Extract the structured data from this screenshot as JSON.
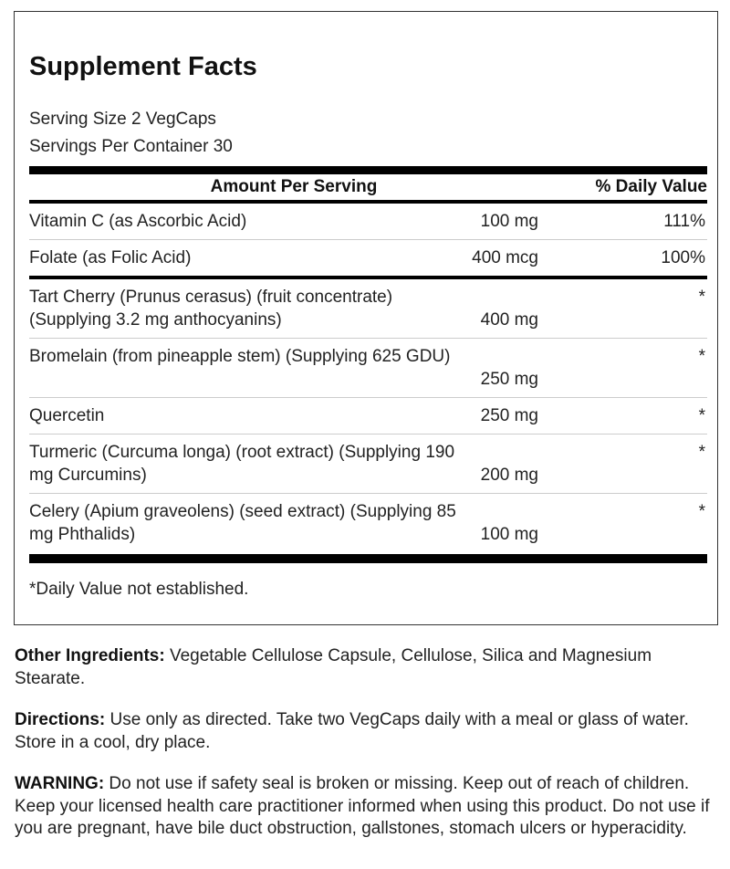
{
  "title": "Supplement Facts",
  "serving_size": "Serving Size 2 VegCaps",
  "servings_per_container": "Servings Per Container 30",
  "header": {
    "amount": "Amount Per Serving",
    "dv": "% Daily Value"
  },
  "rows": [
    {
      "lines": [
        "Vitamin C (as Ascorbic Acid)"
      ],
      "amount": "100 mg",
      "dv": "111%"
    },
    {
      "lines": [
        "Folate (as Folic Acid)"
      ],
      "amount": "400 mcg",
      "dv": "100%"
    },
    {
      "lines": [
        "Tart Cherry (Prunus cerasus) (fruit concentrate)",
        "(Supplying 3.2 mg anthocyanins)"
      ],
      "amount": "400 mg",
      "dv": "*"
    },
    {
      "lines": [
        "Bromelain (from pineapple stem) (Supplying 625 GDU)",
        ""
      ],
      "amount": "250 mg",
      "dv": "*"
    },
    {
      "lines": [
        "Quercetin"
      ],
      "amount": "250 mg",
      "dv": "*"
    },
    {
      "lines": [
        "Turmeric (Curcuma longa) (root extract) (Supplying 190",
        "mg Curcumins)"
      ],
      "amount": "200 mg",
      "dv": "*"
    },
    {
      "lines": [
        "Celery (Apium graveolens) (seed extract) (Supplying 85",
        "mg Phthalids)"
      ],
      "amount": "100 mg",
      "dv": "*"
    }
  ],
  "footnote": "*Daily Value not established.",
  "other": {
    "label": "Other Ingredients:",
    "text": " Vegetable Cellulose Capsule, Cellulose, Silica and Magnesium Stearate."
  },
  "directions": {
    "label": "Directions:",
    "text": " Use only as directed. Take two VegCaps daily with a meal or glass of water. Store in a cool, dry place."
  },
  "warning": {
    "label": "WARNING:",
    "text": " Do not use if safety seal is broken or missing. Keep out of reach of children. Keep your licensed health care practitioner informed when using this product. Do not use if you are pregnant, have bile duct obstruction, gallstones, stomach ulcers or hyperacidity."
  }
}
